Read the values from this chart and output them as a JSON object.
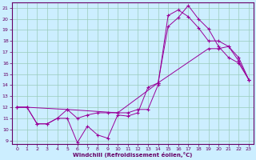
{
  "xlabel": "Windchill (Refroidissement éolien,°C)",
  "bg_color": "#cceeff",
  "line_color": "#990099",
  "grid_color": "#99ccbb",
  "xlim": [
    -0.5,
    23.5
  ],
  "ylim": [
    8.7,
    21.5
  ],
  "xticks": [
    0,
    1,
    2,
    3,
    4,
    5,
    6,
    7,
    8,
    9,
    10,
    11,
    12,
    13,
    14,
    15,
    16,
    17,
    18,
    19,
    20,
    21,
    22,
    23
  ],
  "yticks": [
    9,
    10,
    11,
    12,
    13,
    14,
    15,
    16,
    17,
    18,
    19,
    20,
    21
  ],
  "line1_x": [
    0,
    1,
    2,
    3,
    4,
    5,
    6,
    7,
    8,
    9,
    10,
    11,
    12,
    13,
    14,
    15,
    16,
    17,
    18,
    19,
    20,
    21,
    22,
    23
  ],
  "line1_y": [
    12,
    12,
    10.5,
    10.5,
    11,
    11,
    8.8,
    10.3,
    9.5,
    9.2,
    11.3,
    11.2,
    11.5,
    13.8,
    14.2,
    19.3,
    20.1,
    21.2,
    20.0,
    19.1,
    17.5,
    16.5,
    16.0,
    14.5
  ],
  "line2_x": [
    0,
    1,
    2,
    3,
    4,
    5,
    6,
    7,
    8,
    9,
    10,
    11,
    12,
    13,
    14,
    15,
    16,
    17,
    18,
    19,
    20,
    21,
    22,
    23
  ],
  "line2_y": [
    12,
    12,
    10.5,
    10.5,
    11,
    11.8,
    11.0,
    11.3,
    11.5,
    11.5,
    11.5,
    11.5,
    11.8,
    11.8,
    14.0,
    20.3,
    20.8,
    20.2,
    19.2,
    18.0,
    18.0,
    17.5,
    16.2,
    14.5
  ],
  "line3_x": [
    0,
    1,
    5,
    10,
    14,
    19,
    20,
    21,
    22,
    23
  ],
  "line3_y": [
    12,
    12,
    11.8,
    11.5,
    14.2,
    17.3,
    17.3,
    17.5,
    16.5,
    14.5
  ]
}
